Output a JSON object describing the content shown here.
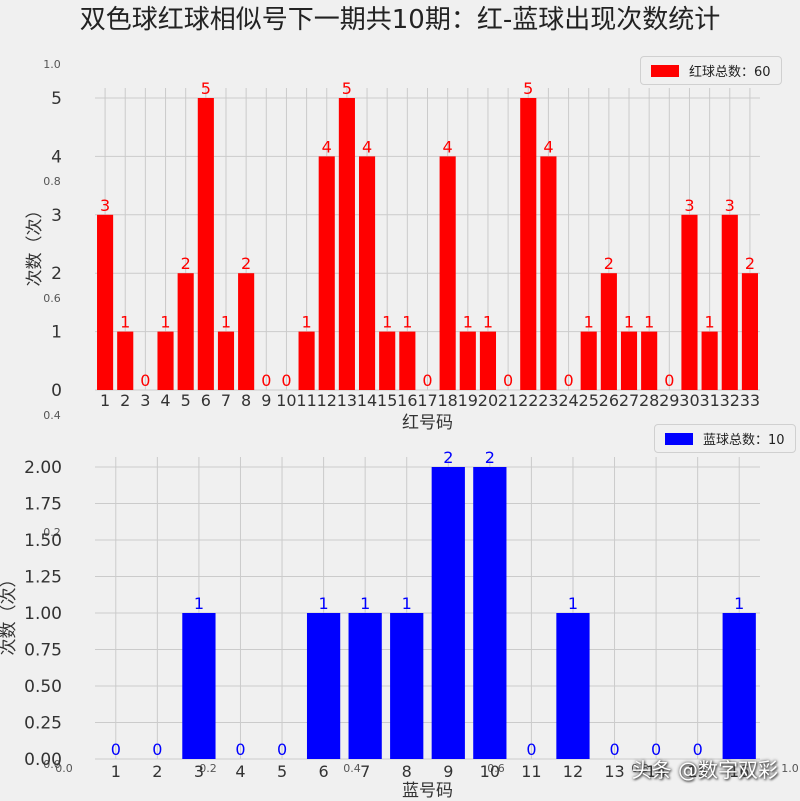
{
  "title": "双色球红球相似号下一期共10期：红-蓝球出现次数统计",
  "watermark": "头条 @数字双彩",
  "chart_data": [
    {
      "type": "bar",
      "color": "#ff0000",
      "categories": [
        "1",
        "2",
        "3",
        "4",
        "5",
        "6",
        "7",
        "8",
        "9",
        "10",
        "11",
        "12",
        "13",
        "14",
        "15",
        "16",
        "17",
        "18",
        "19",
        "20",
        "21",
        "22",
        "23",
        "24",
        "25",
        "26",
        "27",
        "28",
        "29",
        "30",
        "31",
        "32",
        "33"
      ],
      "values": [
        3,
        1,
        0,
        1,
        2,
        5,
        1,
        2,
        0,
        0,
        1,
        4,
        5,
        4,
        1,
        1,
        0,
        4,
        1,
        1,
        0,
        5,
        4,
        0,
        1,
        2,
        1,
        1,
        0,
        3,
        1,
        3,
        2
      ],
      "xlabel": "红号码",
      "ylabel": "次数（次）",
      "ylim": [
        0,
        5
      ],
      "yticks": [
        "0",
        "1",
        "2",
        "3",
        "4",
        "5"
      ],
      "legend": "红球总数：60",
      "grid": true
    },
    {
      "type": "bar",
      "color": "#0000ff",
      "categories": [
        "1",
        "2",
        "3",
        "4",
        "5",
        "6",
        "7",
        "8",
        "9",
        "10",
        "11",
        "12",
        "13",
        "14",
        "15",
        "16"
      ],
      "values": [
        0,
        0,
        1,
        0,
        0,
        1,
        1,
        1,
        2,
        2,
        0,
        1,
        0,
        0,
        0,
        1
      ],
      "xlabel": "蓝号码",
      "ylabel": "次数（次）",
      "ylim": [
        0,
        2
      ],
      "yticks": [
        "0.00",
        "0.25",
        "0.50",
        "0.75",
        "1.00",
        "1.25",
        "1.50",
        "1.75",
        "2.00"
      ],
      "legend": "蓝球总数：10",
      "grid": true
    }
  ],
  "ghost_ticks": {
    "left_y": [
      "1.0",
      "0.8",
      "0.6",
      "0.4",
      "0.2",
      "0.0"
    ],
    "bottom_x": [
      "0.0",
      "0.2",
      "0.4",
      "0.6",
      "0.8",
      "1.0"
    ]
  }
}
